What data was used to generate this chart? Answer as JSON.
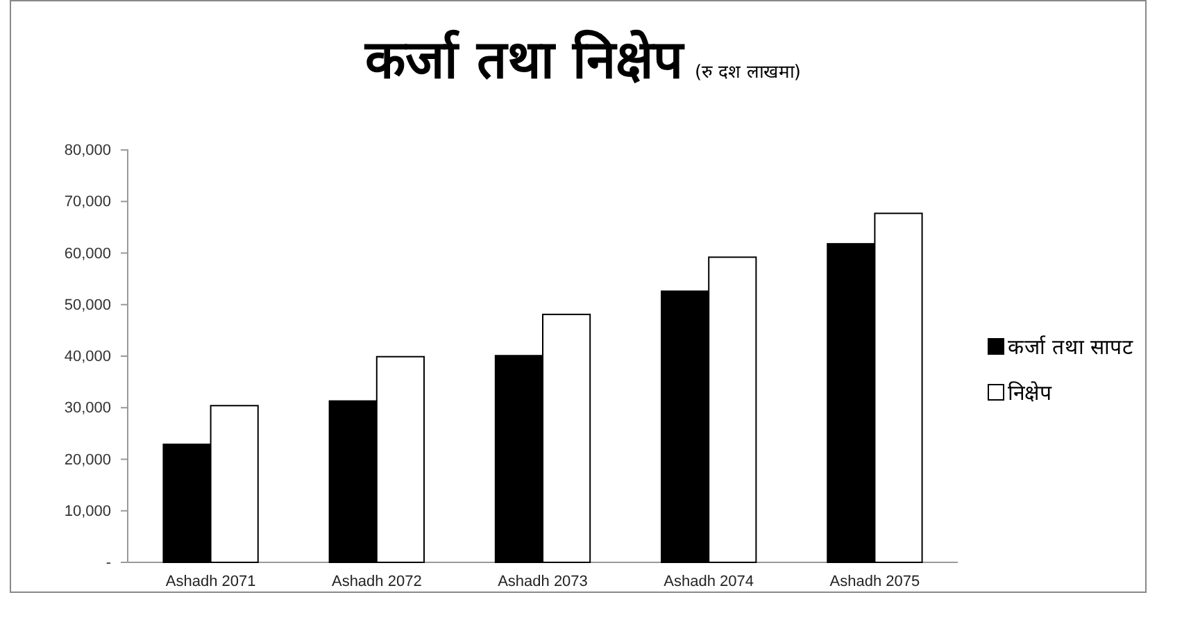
{
  "chart_data": {
    "type": "bar",
    "title": "कर्जा तथा निक्षेप",
    "subtitle": "(रु दश लाखमा)",
    "categories": [
      "Ashadh 2071",
      "Ashadh 2072",
      "Ashadh 2073",
      "Ashadh 2074",
      "Ashadh 2075"
    ],
    "series": [
      {
        "name": "कर्जा तथा सापट",
        "color": "#000000",
        "values": [
          22900,
          31300,
          40100,
          52600,
          61800
        ]
      },
      {
        "name": "निक्षेप",
        "color": "#ffffff",
        "values": [
          30400,
          39900,
          48100,
          59200,
          67700
        ]
      }
    ],
    "ylim": [
      0,
      80000
    ],
    "yticks": [
      {
        "value": 0,
        "label": "-"
      },
      {
        "value": 10000,
        "label": "10,000"
      },
      {
        "value": 20000,
        "label": "20,000"
      },
      {
        "value": 30000,
        "label": "30,000"
      },
      {
        "value": 40000,
        "label": "40,000"
      },
      {
        "value": 50000,
        "label": "50,000"
      },
      {
        "value": 60000,
        "label": "60,000"
      },
      {
        "value": 70000,
        "label": "70,000"
      },
      {
        "value": 80000,
        "label": "80,000"
      }
    ],
    "grid": false,
    "legend": "right"
  }
}
